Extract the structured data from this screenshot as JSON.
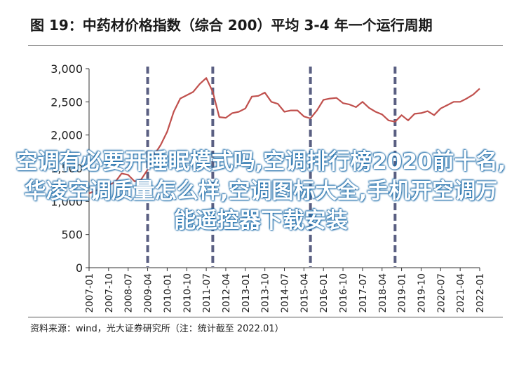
{
  "header": {
    "title": "图 19：中药材价格指数（综合 200）平均 3-4 年一个运行周期"
  },
  "footer": {
    "source": "资料来源：wind，光大证券研究所（注：统计截至 2022.01）"
  },
  "overlay": {
    "text": "空调有必要开睡眠模式吗,空调排行榜2020前十名,华凌空调质量怎么样,空调图标大全,手机开空调万能遥控器下载安装"
  },
  "colors": {
    "line": "#c0504d",
    "cycle_marker": "#5a5f82",
    "axis": "#333333"
  },
  "chart_data": {
    "type": "line",
    "title": "图 19：中药材价格指数（综合 200）平均 3-4 年一个运行周期",
    "xlabel": "",
    "ylabel": "",
    "ylim": [
      0,
      3000
    ],
    "yticks": [
      0,
      500,
      1000,
      1500,
      2000,
      2500,
      3000
    ],
    "ytick_labels": [
      "0",
      "500",
      "1,000",
      "1,500",
      "2,000",
      "2,500",
      "3,000"
    ],
    "xlim": [
      "2007-01",
      "2022-01"
    ],
    "xticks": [
      "2007-01",
      "2007-10",
      "2008-07",
      "2009-04",
      "2010-01",
      "2010-10",
      "2011-07",
      "2012-04",
      "2013-01",
      "2013-10",
      "2014-07",
      "2015-04",
      "2016-01",
      "2016-10",
      "2017-07",
      "2018-04",
      "2019-01",
      "2019-10",
      "2020-07",
      "2021-04",
      "2022-01"
    ],
    "grid": false,
    "legend": "none",
    "cycle_markers": [
      "2009-04",
      "2011-10",
      "2015-07",
      "2018-10"
    ],
    "series": [
      {
        "x": [
          "2007-01",
          "2007-07",
          "2008-01",
          "2008-04",
          "2008-07",
          "2008-10",
          "2009-01",
          "2009-04",
          "2009-07",
          "2009-10",
          "2010-01",
          "2010-04",
          "2010-07",
          "2010-10",
          "2011-01",
          "2011-04",
          "2011-07",
          "2011-10",
          "2012-01",
          "2012-04",
          "2012-07",
          "2012-10",
          "2013-01",
          "2013-04",
          "2013-07",
          "2013-10",
          "2014-01",
          "2014-04",
          "2014-07",
          "2014-10",
          "2015-01",
          "2015-04",
          "2015-07",
          "2015-10",
          "2016-01",
          "2016-04",
          "2016-07",
          "2016-10",
          "2017-01",
          "2017-04",
          "2017-07",
          "2017-10",
          "2018-01",
          "2018-04",
          "2018-07",
          "2018-10",
          "2019-01",
          "2019-04",
          "2019-07",
          "2019-10",
          "2020-01",
          "2020-04",
          "2020-07",
          "2020-10",
          "2021-01",
          "2021-04",
          "2021-07",
          "2021-10",
          "2022-01"
        ],
        "values": [
          1120,
          1200,
          1290,
          1420,
          1400,
          1300,
          1330,
          1480,
          1700,
          1850,
          2050,
          2350,
          2550,
          2600,
          2650,
          2770,
          2860,
          2650,
          2270,
          2260,
          2330,
          2350,
          2400,
          2580,
          2590,
          2640,
          2500,
          2470,
          2350,
          2370,
          2370,
          2280,
          2250,
          2370,
          2530,
          2550,
          2560,
          2480,
          2460,
          2420,
          2500,
          2410,
          2350,
          2310,
          2220,
          2200,
          2300,
          2220,
          2320,
          2330,
          2360,
          2300,
          2400,
          2450,
          2500,
          2500,
          2550,
          2610,
          2700
        ]
      }
    ]
  }
}
